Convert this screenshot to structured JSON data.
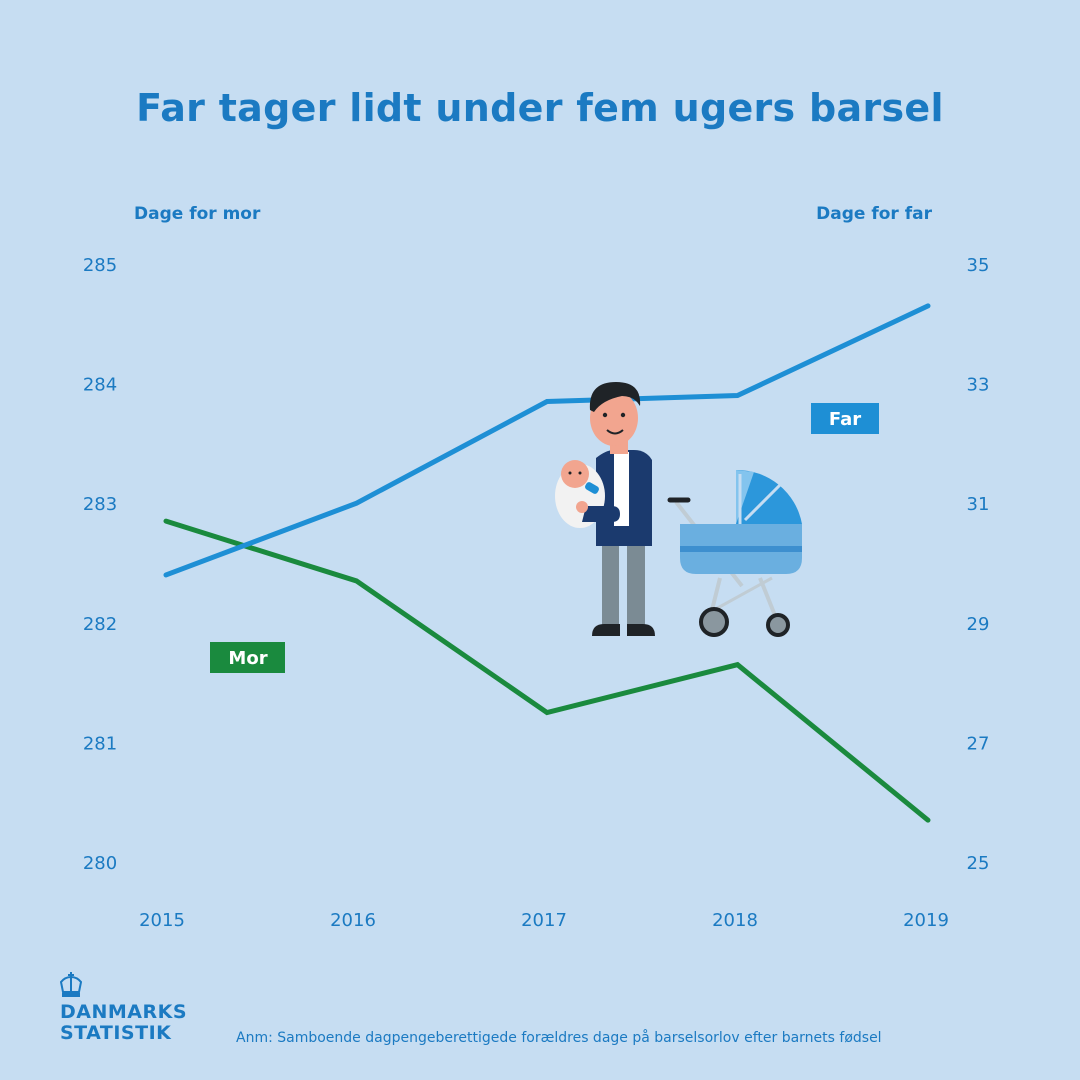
{
  "title": "Far tager lidt under fem ugers barsel",
  "left_axis_title": "Dage for mor",
  "right_axis_title": "Dage for far",
  "footnote": "Anm: Samboende dagpengeberettigede forældres dage på barselsorlov efter barnets fødsel",
  "logo": {
    "line1": "DANMARKS",
    "line2": "STATISTIK",
    "icon": "crown-icon"
  },
  "colors": {
    "background": "#c6ddf2",
    "far": "#1e8fd5",
    "mor": "#1a8a3e",
    "text": "#1b7ac2"
  },
  "chart_data": {
    "type": "line",
    "categories": [
      "2015",
      "2016",
      "2017",
      "2018",
      "2019"
    ],
    "series": [
      {
        "name": "Mor",
        "axis": "left",
        "values": [
          282.85,
          282.35,
          281.25,
          281.65,
          280.35
        ]
      },
      {
        "name": "Far",
        "axis": "right",
        "values": [
          29.8,
          31.0,
          32.7,
          32.8,
          34.3
        ]
      }
    ],
    "y_left": {
      "min": 280,
      "max": 285,
      "ticks": [
        285,
        284,
        283,
        282,
        281,
        280
      ]
    },
    "y_right": {
      "min": 25,
      "max": 35,
      "ticks": [
        35,
        33,
        31,
        29,
        27,
        25
      ]
    },
    "grid": false
  }
}
